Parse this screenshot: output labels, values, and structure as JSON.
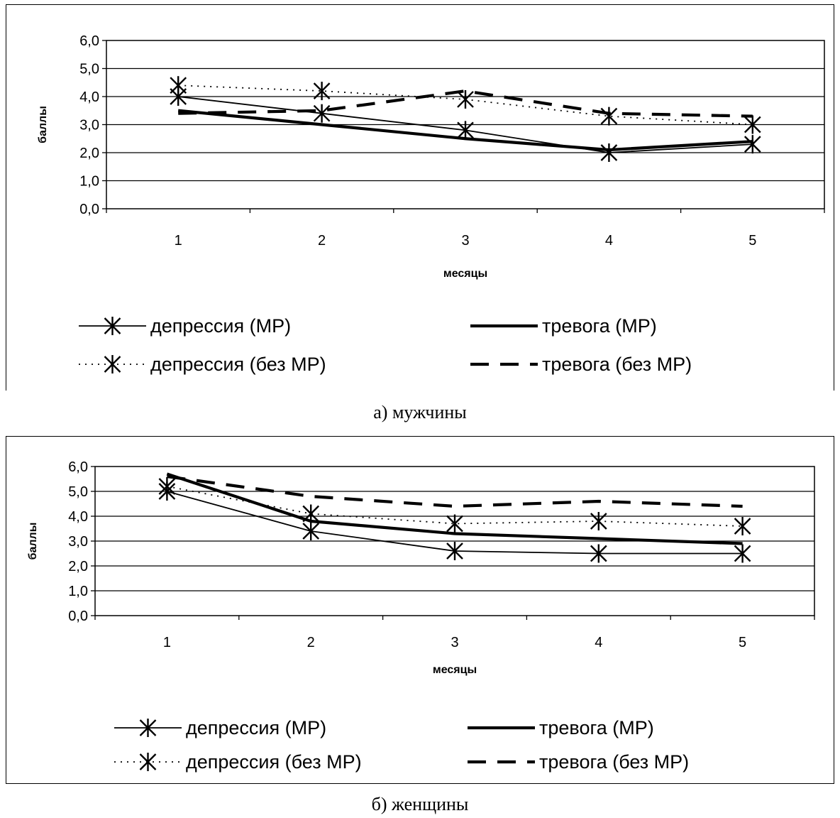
{
  "chart_data": [
    {
      "type": "line",
      "caption": "а) мужчины",
      "xlabel": "месяцы",
      "ylabel": "баллы",
      "categories": [
        "1",
        "2",
        "3",
        "4",
        "5"
      ],
      "yticks": [
        "0,0",
        "1,0",
        "2,0",
        "3,0",
        "4,0",
        "5,0",
        "6,0"
      ],
      "ylim": [
        0,
        6
      ],
      "grid": true,
      "legend_position": "bottom",
      "series": [
        {
          "name": "депрессия (МР)",
          "values": [
            4.0,
            3.4,
            2.8,
            2.0,
            2.3
          ],
          "style": "solid-thin",
          "marker": "asterisk"
        },
        {
          "name": "тревога (МР)",
          "values": [
            3.5,
            3.0,
            2.5,
            2.1,
            2.4
          ],
          "style": "solid-thick",
          "marker": "none"
        },
        {
          "name": "депрессия (без МР)",
          "values": [
            4.4,
            4.2,
            3.9,
            3.3,
            3.0
          ],
          "style": "dotted",
          "marker": "asterisk"
        },
        {
          "name": "тревога (без МР)",
          "values": [
            3.4,
            3.5,
            4.2,
            3.4,
            3.3
          ],
          "style": "dashed",
          "marker": "none"
        }
      ]
    },
    {
      "type": "line",
      "caption": "б) женщины",
      "xlabel": "месяцы",
      "ylabel": "баллы",
      "categories": [
        "1",
        "2",
        "3",
        "4",
        "5"
      ],
      "yticks": [
        "0,0",
        "1,0",
        "2,0",
        "3,0",
        "4,0",
        "5,0",
        "6,0"
      ],
      "ylim": [
        0,
        6
      ],
      "grid": true,
      "legend_position": "bottom",
      "series": [
        {
          "name": "депрессия (МР)",
          "values": [
            5.0,
            3.4,
            2.6,
            2.5,
            2.5
          ],
          "style": "solid-thin",
          "marker": "asterisk"
        },
        {
          "name": "тревога (МР)",
          "values": [
            5.7,
            3.8,
            3.3,
            3.1,
            2.9
          ],
          "style": "solid-thick",
          "marker": "none"
        },
        {
          "name": "депрессия (без МР)",
          "values": [
            5.2,
            4.1,
            3.7,
            3.8,
            3.6
          ],
          "style": "dotted",
          "marker": "asterisk"
        },
        {
          "name": "тревога (без МР)",
          "values": [
            5.6,
            4.8,
            4.4,
            4.6,
            4.4
          ],
          "style": "dashed",
          "marker": "none"
        }
      ]
    }
  ]
}
